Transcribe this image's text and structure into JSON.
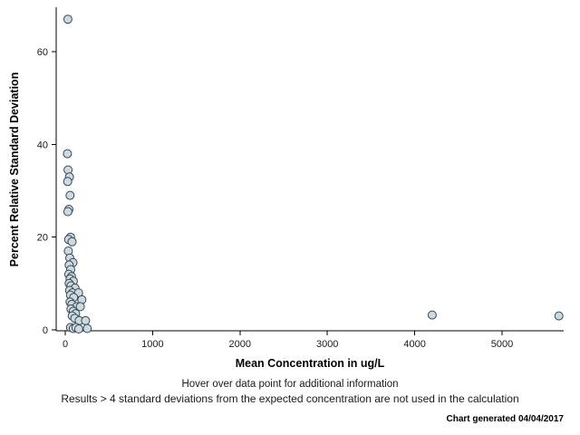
{
  "chart_data": {
    "type": "scatter",
    "title": "",
    "xlabel": "Mean Concentration in ug/L",
    "ylabel": "Percent Relative Standard Deviation",
    "xlim": [
      0,
      5700
    ],
    "ylim": [
      0,
      70
    ],
    "x_ticks": [
      0,
      1000,
      2000,
      3000,
      4000,
      5000
    ],
    "y_ticks": [
      0,
      20,
      40,
      60
    ],
    "grid": false,
    "legend": "none",
    "marker": {
      "shape": "circle",
      "fill": "#ccd8e2",
      "stroke": "#37474f",
      "radius": 4.5
    },
    "points": [
      [
        30,
        67
      ],
      [
        25,
        38
      ],
      [
        32,
        34.5
      ],
      [
        48,
        33
      ],
      [
        28,
        32
      ],
      [
        55,
        29
      ],
      [
        42,
        26
      ],
      [
        30,
        25.5
      ],
      [
        60,
        20
      ],
      [
        38,
        19.5
      ],
      [
        78,
        19
      ],
      [
        35,
        17
      ],
      [
        52,
        15.5
      ],
      [
        88,
        14.5
      ],
      [
        45,
        14
      ],
      [
        62,
        13
      ],
      [
        40,
        12
      ],
      [
        72,
        11.5
      ],
      [
        55,
        11
      ],
      [
        92,
        10.5
      ],
      [
        45,
        10
      ],
      [
        65,
        9.5
      ],
      [
        112,
        9
      ],
      [
        50,
        8.5
      ],
      [
        82,
        8
      ],
      [
        152,
        8
      ],
      [
        60,
        7.5
      ],
      [
        96,
        7
      ],
      [
        190,
        6.5
      ],
      [
        55,
        6
      ],
      [
        76,
        5.5
      ],
      [
        130,
        5
      ],
      [
        172,
        5
      ],
      [
        65,
        4.5
      ],
      [
        92,
        4
      ],
      [
        118,
        3.5
      ],
      [
        80,
        3
      ],
      [
        110,
        2.5
      ],
      [
        160,
        2
      ],
      [
        232,
        2
      ],
      [
        60,
        0.5
      ],
      [
        92,
        0.3
      ],
      [
        122,
        0.5
      ],
      [
        155,
        0.2
      ],
      [
        252,
        0.3
      ],
      [
        4200,
        3.2
      ],
      [
        5650,
        3
      ]
    ]
  },
  "footer": {
    "hover_note": "Hover over data point for additional information",
    "exclusion_note": "Results > 4 standard deviations from the expected concentration are not used in the calculation",
    "generated": "Chart generated 04/04/2017"
  }
}
